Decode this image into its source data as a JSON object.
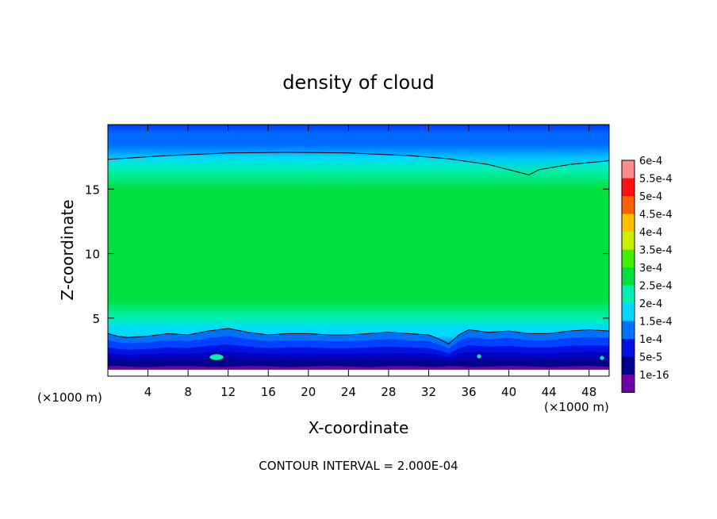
{
  "chart_data": {
    "type": "heatmap",
    "title": "density of cloud",
    "xlabel": "X-coordinate",
    "ylabel": "Z-coordinate",
    "x_unit_left": "(×1000 m)",
    "x_unit_right": "(×1000 m)",
    "footer": "CONTOUR INTERVAL = 2.000E-04",
    "x_ticks": [
      "4",
      "8",
      "12",
      "16",
      "20",
      "24",
      "28",
      "32",
      "36",
      "40",
      "44",
      "48"
    ],
    "x_tick_values": [
      4,
      8,
      12,
      16,
      20,
      24,
      28,
      32,
      36,
      40,
      44,
      48
    ],
    "y_ticks": [
      "5",
      "10",
      "15"
    ],
    "y_tick_values": [
      5,
      10,
      15
    ],
    "xlim": [
      0,
      50
    ],
    "ylim": [
      0.5,
      20
    ],
    "colorbar": {
      "labels": [
        "1e-16",
        "5e-5",
        "1e-4",
        "1.5e-4",
        "2e-4",
        "2.5e-4",
        "3e-4",
        "3.5e-4",
        "4e-4",
        "4.5e-4",
        "5e-4",
        "5.5e-4",
        "6e-4"
      ],
      "colors": [
        "#7000a8",
        "#00008f",
        "#0010e0",
        "#0070ff",
        "#00d8ff",
        "#00f0b0",
        "#00e040",
        "#40f000",
        "#c8f000",
        "#ffc000",
        "#ff6000",
        "#ff1010",
        "#ff8c8c"
      ]
    },
    "cloud_top_contour": {
      "x": [
        0,
        6,
        12,
        18,
        24,
        30,
        34,
        38,
        40,
        42,
        43,
        46,
        50
      ],
      "z": [
        17.3,
        17.6,
        17.8,
        17.85,
        17.8,
        17.6,
        17.35,
        16.9,
        16.5,
        16.1,
        16.5,
        16.9,
        17.2
      ]
    },
    "cloud_base_contour": {
      "x": [
        0,
        1,
        2,
        4,
        6,
        8,
        10,
        12,
        14,
        16,
        18,
        20,
        22,
        24,
        26,
        28,
        30,
        32,
        33,
        34,
        35,
        36,
        38,
        40,
        42,
        44,
        46,
        48,
        50
      ],
      "z": [
        3.8,
        3.6,
        3.5,
        3.6,
        3.8,
        3.7,
        4.0,
        4.2,
        3.9,
        3.7,
        3.8,
        3.8,
        3.7,
        3.7,
        3.8,
        3.9,
        3.8,
        3.7,
        3.4,
        3.0,
        3.7,
        4.1,
        3.9,
        4.0,
        3.8,
        3.8,
        4.0,
        4.1,
        4.0
      ]
    },
    "vertical_profile": {
      "z": [
        0.5,
        1.3,
        1.6,
        1.9,
        2.4,
        3.0,
        3.6,
        4.2,
        5.0,
        6.5,
        8.5,
        11.0,
        13.5,
        15.0,
        16.5,
        17.5,
        18.5,
        19.3,
        20.0
      ],
      "value": [
        1e-16,
        5e-05,
        7.5e-05,
        0.0001,
        0.000125,
        0.00015,
        0.00018,
        0.00022,
        0.00025,
        0.00028,
        0.0003,
        0.00031,
        0.0003,
        0.00028,
        0.00025,
        0.00021,
        0.00017,
        0.00013,
        0.0001
      ]
    }
  }
}
